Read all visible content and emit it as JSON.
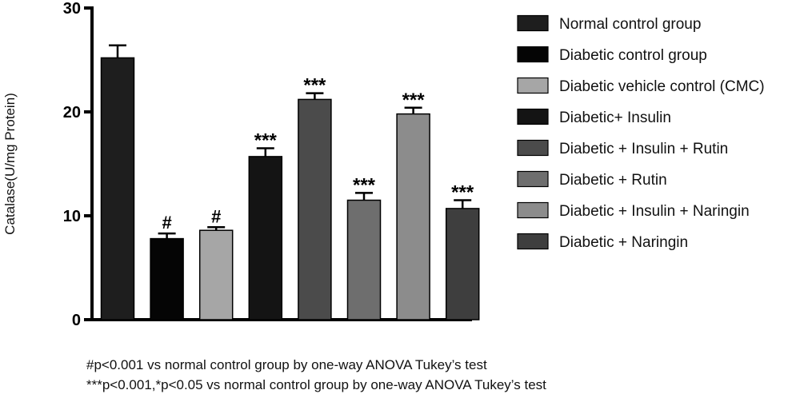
{
  "chart_data": {
    "type": "bar",
    "title": "",
    "xlabel": "",
    "ylabel": "Catalase(U/mg Protein)",
    "ylim": [
      0,
      30
    ],
    "yticks": [
      "0",
      "10",
      "20",
      "30"
    ],
    "grid": false,
    "legend_position": "right",
    "categories": [
      "Normal control group",
      "Diabetic control group",
      "Diabetic vehicle control (CMC)",
      "Diabetic+ Insulin",
      "Diabetic + Insulin + Rutin",
      "Diabetic + Rutin",
      "Diabetic + Insulin + Naringin",
      "Diabetic + Naringin"
    ],
    "values": [
      25.2,
      7.8,
      8.6,
      15.7,
      21.2,
      11.5,
      19.8,
      10.7
    ],
    "error": [
      1.2,
      0.5,
      0.3,
      0.8,
      0.6,
      0.7,
      0.6,
      0.8
    ],
    "annotations": [
      "",
      "#",
      "#",
      "***",
      "***",
      "***",
      "***",
      "***"
    ],
    "colors": [
      "#1e1e1e",
      "#050505",
      "#a6a6a6",
      "#141414",
      "#4b4b4b",
      "#6e6e6e",
      "#8c8c8c",
      "#3e3e3e"
    ]
  },
  "footnotes": [
    "#p<0.001 vs normal control group by one-way ANOVA Tukey’s test",
    "***p<0.001,*p<0.05 vs normal control group by one-way ANOVA Tukey’s test"
  ]
}
